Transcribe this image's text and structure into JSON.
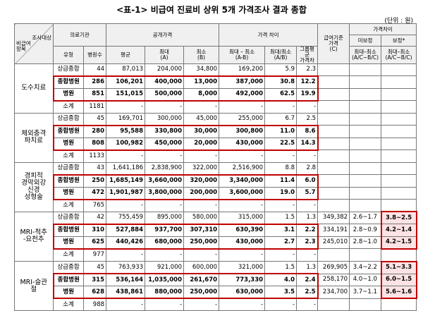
{
  "header": {
    "title": "<표-1> 비급여 진료비 상위 5개 가격조사 결과 종합",
    "unit": "(단위 : 원)"
  },
  "table": {
    "corner": {
      "top": "조사대상",
      "bottom": "비급여\n항목"
    },
    "groups_header": {
      "institution": "의료기관",
      "public_price": "공개가격",
      "price_diff": "가격 차이",
      "base_price": "급여기준\n가격\n(C)",
      "diff2": "가격차이",
      "uncorrected": "미보정",
      "corrected": "보정*"
    },
    "columns": [
      "유형",
      "병원수",
      "평균",
      "최대\n(A)",
      "최소\n(B)",
      "최대 – 최소\n(A-B)",
      "최대/최소\n(A/B)",
      "그룹평균\n가격차",
      "최대–최소\n(A/C~B/C)",
      "최대–최소\n(A/C~B/C)"
    ],
    "groups": [
      {
        "name": "도수치료",
        "rows": [
          {
            "type": "상급종합",
            "cells": [
              "44",
              "87,013",
              "204,000",
              "34,800",
              "169,200",
              "5.9",
              "2.3"
            ]
          },
          {
            "type": "종합병원",
            "cells": [
              "286",
              "106,201",
              "400,000",
              "13,000",
              "387,000",
              "30.8",
              "12.2"
            ]
          },
          {
            "type": "병원",
            "cells": [
              "851",
              "151,015",
              "500,000",
              "8,000",
              "492,000",
              "62.5",
              "19.9"
            ]
          },
          {
            "type": "소계",
            "cells": [
              "1181",
              "-",
              "-",
              "-",
              "-",
              "-",
              "-"
            ]
          }
        ]
      },
      {
        "name": "체외충격\n파치료",
        "rows": [
          {
            "type": "상급종합",
            "cells": [
              "45",
              "169,701",
              "300,000",
              "45,000",
              "255,000",
              "6.7",
              "2.5"
            ]
          },
          {
            "type": "종합병원",
            "cells": [
              "280",
              "95,588",
              "330,800",
              "30,000",
              "300,800",
              "11.0",
              "8.6"
            ]
          },
          {
            "type": "병원",
            "cells": [
              "808",
              "100,982",
              "450,000",
              "20,000",
              "430,000",
              "22.5",
              "14.3"
            ]
          },
          {
            "type": "소계",
            "cells": [
              "1133",
              "-",
              "-",
              "-",
              "-",
              "-",
              "-"
            ]
          }
        ]
      },
      {
        "name": "경피적\n경막외강\n신경\n성형술",
        "rows": [
          {
            "type": "상급종합",
            "cells": [
              "43",
              "1,641,186",
              "2,838,900",
              "322,000",
              "2,516,900",
              "8.8",
              "2.8"
            ]
          },
          {
            "type": "종합병원",
            "cells": [
              "250",
              "1,685,149",
              "3,660,000",
              "320,000",
              "3,340,000",
              "11.4",
              "6.0"
            ]
          },
          {
            "type": "병원",
            "cells": [
              "472",
              "1,901,987",
              "3,800,000",
              "200,000",
              "3,600,000",
              "19.0",
              "5.7"
            ]
          },
          {
            "type": "소계",
            "cells": [
              "765",
              "-",
              "-",
              "-",
              "-",
              "-",
              "-"
            ]
          }
        ]
      },
      {
        "name": "MRI-척추\n-요천추",
        "rows": [
          {
            "type": "상급종합",
            "cells": [
              "42",
              "755,459",
              "895,000",
              "580,000",
              "315,000",
              "1.5",
              "1.3",
              "349,382",
              "2.6~1.7",
              "3.8~2.5"
            ]
          },
          {
            "type": "종합병원",
            "cells": [
              "310",
              "527,884",
              "937,700",
              "307,310",
              "630,390",
              "3.1",
              "2.2",
              "334,191",
              "2.8~0.9",
              "4.2~1.4"
            ]
          },
          {
            "type": "병원",
            "cells": [
              "625",
              "440,426",
              "680,000",
              "250,000",
              "430,000",
              "2.7",
              "2.3",
              "245,010",
              "2.8~1.0",
              "4.2~1.5"
            ]
          },
          {
            "type": "소계",
            "cells": [
              "977",
              "-",
              "-",
              "-",
              "-",
              "-",
              "-"
            ]
          }
        ]
      },
      {
        "name": "MRI-슬관\n절",
        "rows": [
          {
            "type": "상급종합",
            "cells": [
              "45",
              "763,933",
              "921,000",
              "600,000",
              "321,000",
              "1.5",
              "1.3",
              "269,905",
              "3.4~2.2",
              "5.1~3.3"
            ]
          },
          {
            "type": "종합병원",
            "cells": [
              "315",
              "536,164",
              "1,035,000",
              "261,670",
              "773,330",
              "4.0",
              "2.4",
              "258,170",
              "4.0~1.0",
              "6.0~1.5"
            ]
          },
          {
            "type": "병원",
            "cells": [
              "628",
              "438,861",
              "880,000",
              "250,000",
              "630,000",
              "3.5",
              "2.5",
              "234,700",
              "3.7~1.1",
              "5.6~1.6"
            ]
          },
          {
            "type": "소계",
            "cells": [
              "988",
              "-",
              "-",
              "-",
              "-",
              "-",
              "-"
            ]
          }
        ]
      }
    ]
  }
}
